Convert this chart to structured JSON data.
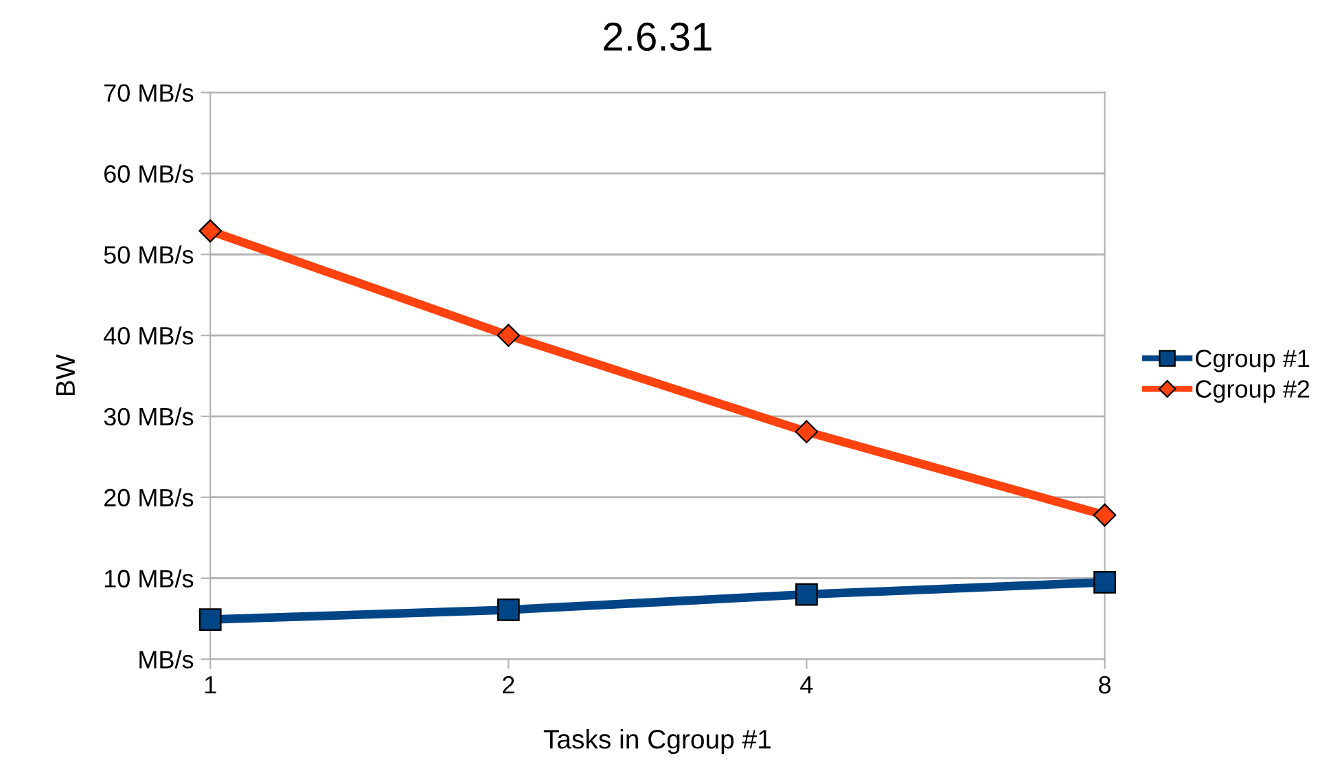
{
  "chart_data": {
    "type": "line",
    "title": "2.6.31",
    "xlabel": "Tasks in Cgroup #1",
    "ylabel": "BW",
    "categories": [
      "1",
      "2",
      "4",
      "8"
    ],
    "series": [
      {
        "name": "Cgroup #1",
        "color": "#004586",
        "marker": "square",
        "values": [
          4.9,
          6.1,
          8.0,
          9.5
        ]
      },
      {
        "name": "Cgroup #2",
        "color": "#ff420e",
        "marker": "diamond",
        "values": [
          52.9,
          40.0,
          28.1,
          17.8
        ]
      }
    ],
    "ylim": [
      0,
      70
    ],
    "yticks": [
      {
        "value": 0,
        "label": "MB/s"
      },
      {
        "value": 10,
        "label": "10 MB/s"
      },
      {
        "value": 20,
        "label": "20 MB/s"
      },
      {
        "value": 30,
        "label": "30 MB/s"
      },
      {
        "value": 40,
        "label": "40 MB/s"
      },
      {
        "value": 50,
        "label": "50 MB/s"
      },
      {
        "value": 60,
        "label": "60 MB/s"
      },
      {
        "value": 70,
        "label": "70 MB/s"
      }
    ],
    "grid": "y",
    "legend": "right",
    "line_style": "solid"
  }
}
